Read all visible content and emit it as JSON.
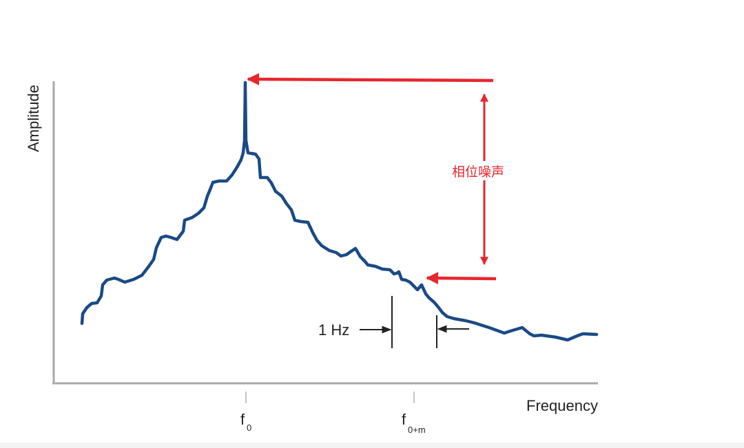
{
  "diagram": {
    "y_axis_label": "Amplitude",
    "x_axis_label": "Frequency",
    "carrier_tick": {
      "main": "f",
      "sub": "0"
    },
    "offset_tick": {
      "main": "f",
      "sub": "0+m"
    },
    "bandwidth_label": "1 Hz",
    "noise_label": "相位噪声"
  },
  "colors": {
    "curve": "#1a4a86",
    "annotation": "#e8262e",
    "axis": "#a9a9a9",
    "text": "#222222"
  }
}
